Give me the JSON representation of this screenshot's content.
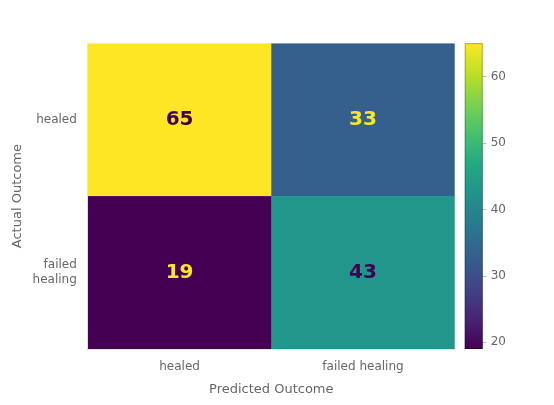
{
  "chart_data": {
    "type": "heatmap",
    "x_categories": [
      "healed",
      "failed healing"
    ],
    "y_categories": [
      "healed",
      "failed\nhealing"
    ],
    "xlabel": "Predicted Outcome",
    "ylabel": "Actual Outcome",
    "values": [
      [
        65,
        33
      ],
      [
        19,
        43
      ]
    ],
    "color": "viridis",
    "colorbar_range": [
      19,
      65
    ],
    "colorbar_ticks": [
      20,
      30,
      40,
      50,
      60
    ],
    "data_labels": true,
    "grid": false
  }
}
